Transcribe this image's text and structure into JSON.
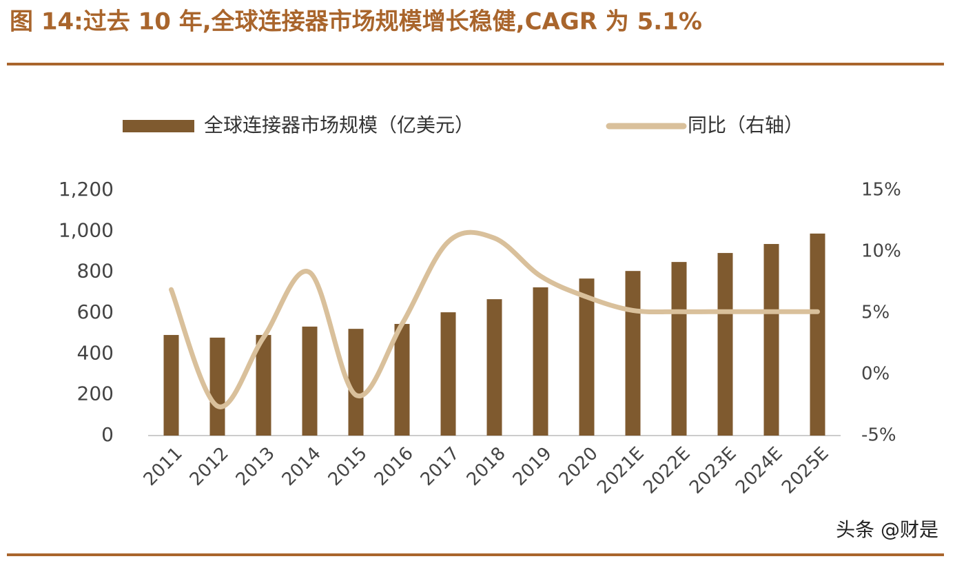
{
  "chart_data": {
    "type": "bar",
    "title": "图 14:过去 10 年,全球连接器市场规模增长稳健,CAGR 为 5.1%",
    "categories": [
      "2011",
      "2012",
      "2013",
      "2014",
      "2015",
      "2016",
      "2017",
      "2018",
      "2019",
      "2020",
      "2021E",
      "2022E",
      "2023E",
      "2024E",
      "2025E"
    ],
    "series": [
      {
        "name": "全球连接器市场规模（亿美元）",
        "color": "#7f5a2f",
        "type": "bar",
        "values": [
          492,
          479,
          492,
          533,
          522,
          546,
          603,
          667,
          725,
          768,
          805,
          849,
          893,
          937,
          988
        ]
      },
      {
        "name": "同比（右轴）",
        "color": "#d9c09b",
        "type": "line",
        "axis": "y2",
        "values": [
          6.9,
          -2.6,
          3.0,
          8.3,
          -1.7,
          4.1,
          10.8,
          11.1,
          8.0,
          6.3,
          5.2,
          5.1,
          5.1,
          5.1,
          5.1
        ]
      }
    ],
    "ylim": [
      0,
      1200
    ],
    "yticks": [
      0,
      200,
      400,
      600,
      800,
      {
        "value": 1000,
        "label": "1,000"
      },
      {
        "value": 1200,
        "label": "1,200"
      }
    ],
    "y2lim": [
      -5,
      15
    ],
    "y2ticks": [
      {
        "value": -5,
        "label": "-5%"
      },
      {
        "value": 0,
        "label": "0%"
      },
      {
        "value": 5,
        "label": "5%"
      },
      {
        "value": 10,
        "label": "10%"
      },
      {
        "value": 15,
        "label": "15%"
      }
    ],
    "grid": false,
    "watermark": "头条 @财是"
  }
}
